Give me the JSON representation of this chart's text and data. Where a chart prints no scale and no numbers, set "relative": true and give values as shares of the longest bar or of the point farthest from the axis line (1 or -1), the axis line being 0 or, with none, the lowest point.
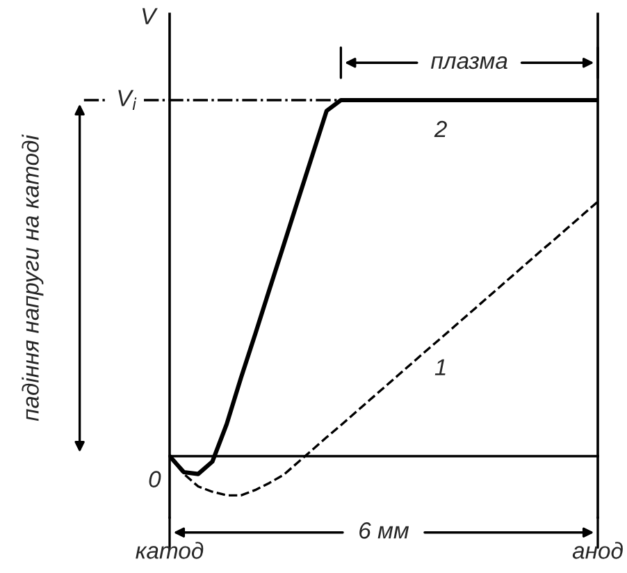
{
  "chart_data": {
    "type": "line",
    "relative": true,
    "ylabel": "V",
    "categories": [
      null,
      null,
      null,
      null,
      null,
      null,
      null,
      null,
      null,
      null,
      null,
      null,
      null,
      null,
      null,
      null,
      null,
      null,
      null,
      null,
      null,
      null,
      null,
      null,
      null,
      null,
      null,
      null,
      null,
      null,
      null
    ],
    "series": [
      {
        "name": "1",
        "color": "#000000",
        "line_style": "dashed",
        "values": [
          0,
          -0.05,
          -0.085,
          -0.1,
          -0.11,
          -0.11,
          -0.095,
          -0.075,
          -0.052,
          -0.017,
          0.018,
          0.053,
          0.087,
          0.122,
          0.157,
          0.192,
          0.227,
          0.262,
          0.297,
          0.331,
          0.366,
          0.401,
          0.436,
          0.471,
          0.506,
          0.541,
          0.576,
          0.61,
          0.645,
          0.68,
          0.715
        ]
      },
      {
        "name": "2",
        "color": "#000000",
        "line_style": "solid",
        "values": [
          0,
          -0.045,
          -0.05,
          -0.015,
          0.09,
          0.22,
          0.343,
          0.469,
          0.594,
          0.72,
          0.845,
          0.97,
          1,
          1,
          1,
          1,
          1,
          1,
          1,
          1,
          1,
          1,
          1,
          1,
          1,
          1,
          1,
          1,
          1,
          1,
          1
        ]
      }
    ],
    "ref_lines": [
      {
        "axis": "y",
        "value": 1,
        "label": "V$_{i}$",
        "line_style": "dashdot"
      }
    ],
    "annotations": [
      "0",
      "падіння напруги на катоді",
      "катод",
      "анод",
      "плазма",
      "6 мм"
    ],
    "marker": "none",
    "grid": false,
    "legend": false
  }
}
